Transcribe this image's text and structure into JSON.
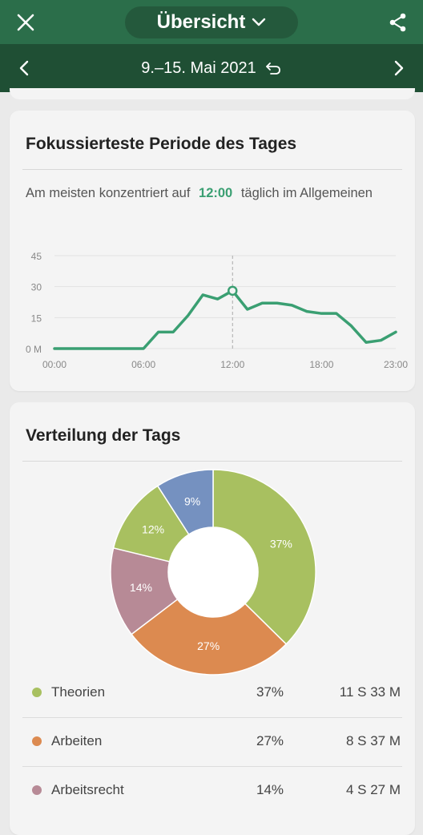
{
  "header": {
    "title": "Übersicht",
    "close_icon": "close-icon",
    "share_icon": "share-icon",
    "dropdown_icon": "chevron-down-icon"
  },
  "date_nav": {
    "range": "9.–15. Mai 2021",
    "reset_icon": "undo-icon",
    "prev_icon": "chevron-left-icon",
    "next_icon": "chevron-right-icon"
  },
  "focus_card": {
    "title": "Fokussierteste Periode des Tages",
    "text_before": "Am meisten konzentriert auf",
    "peak_time": "12:00",
    "text_after": "täglich im Allgemeinen"
  },
  "chart_data": [
    {
      "type": "line",
      "title": "Fokussierteste Periode des Tages",
      "x_tick_labels": [
        "00:00",
        "06:00",
        "12:00",
        "18:00",
        "23:00"
      ],
      "y_tick_labels": [
        "0 M",
        "15",
        "30",
        "45"
      ],
      "ylim": [
        0,
        45
      ],
      "xlim": [
        0,
        23
      ],
      "x": [
        0,
        1,
        2,
        3,
        4,
        5,
        6,
        7,
        8,
        9,
        10,
        11,
        12,
        13,
        14,
        15,
        16,
        17,
        18,
        19,
        20,
        21,
        22,
        23
      ],
      "values": [
        0,
        0,
        0,
        0,
        0,
        0,
        0,
        8,
        8,
        16,
        26,
        24,
        28,
        19,
        22,
        22,
        21,
        18,
        17,
        17,
        11,
        3,
        4,
        8
      ],
      "highlight_x": 12,
      "grid": true,
      "line_color": "#3a9f72"
    },
    {
      "type": "pie",
      "title": "Verteilung der Tags",
      "series": [
        {
          "name": "Theorien",
          "value": 37,
          "label": "37%",
          "color": "#a8c060"
        },
        {
          "name": "Arbeiten",
          "value": 27,
          "label": "27%",
          "color": "#dc8a50"
        },
        {
          "name": "Arbeitsrecht",
          "value": 14,
          "label": "14%",
          "color": "#b78a96"
        },
        {
          "name": "",
          "value": 12,
          "label": "12%",
          "color": "#a8c060"
        },
        {
          "name": "",
          "value": 9,
          "label": "9%",
          "color": "#7591c0"
        }
      ]
    }
  ],
  "tags_card": {
    "title": "Verteilung der Tags",
    "legend": [
      {
        "name": "Theorien",
        "percent": "37%",
        "duration": "11 S 33 M",
        "color": "#a8c060"
      },
      {
        "name": "Arbeiten",
        "percent": "27%",
        "duration": "8 S 37 M",
        "color": "#dc8a50"
      },
      {
        "name": "Arbeitsrecht",
        "percent": "14%",
        "duration": "4 S 27 M",
        "color": "#b78a96"
      }
    ]
  }
}
